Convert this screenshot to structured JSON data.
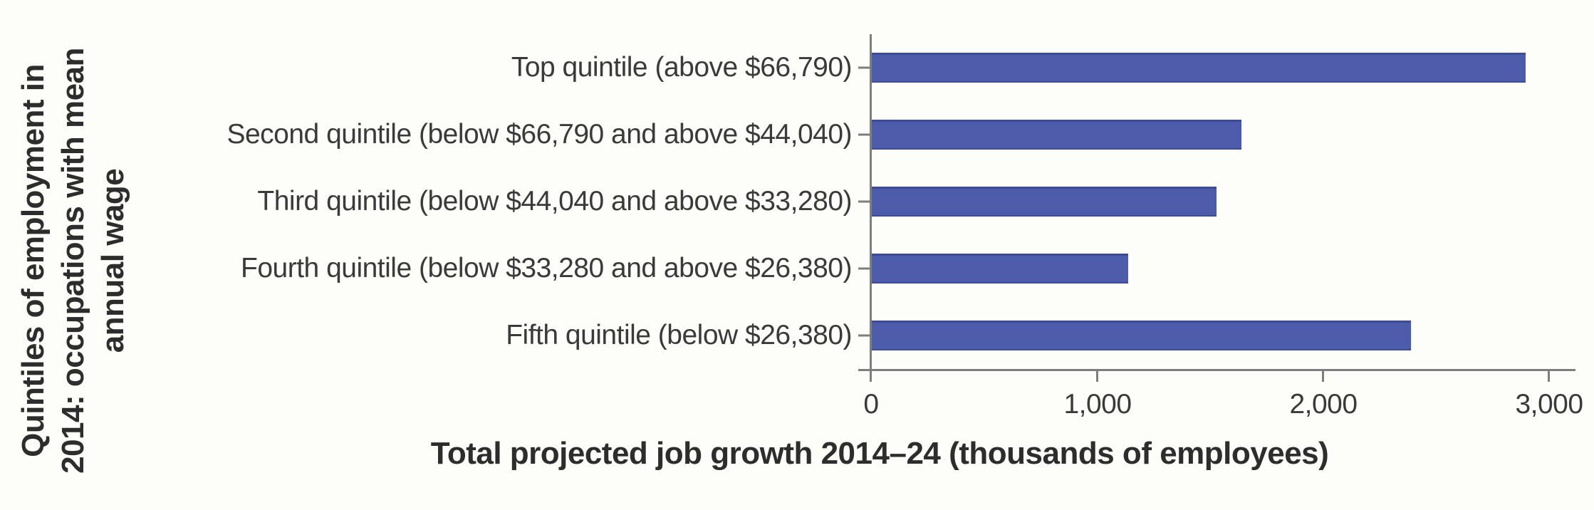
{
  "chart_data": {
    "type": "bar",
    "orientation": "horizontal",
    "categories": [
      "Top quintile (above $66,790)",
      "Second quintile (below $66,790 and above $44,040)",
      "Third quintile (below $44,040 and above $33,280)",
      "Fourth quintile (below $33,280 and above $26,380)",
      "Fifth quintile (below $26,380)"
    ],
    "values": [
      2900,
      1640,
      1530,
      1140,
      2390
    ],
    "xlabel": "Total projected job growth 2014–24 (thousands of employees)",
    "ylabel": "Quintiles of employment in 2014: occupations with mean annual wage",
    "ylabel_lines": [
      "Quintiles of employment in",
      "2014: occupations with mean",
      "annual wage"
    ],
    "xlim": [
      0,
      3100
    ],
    "xticks": [
      0,
      1000,
      2000,
      3000
    ],
    "xtick_labels": [
      "0",
      "1,000",
      "2,000",
      "3,000"
    ],
    "grid": false,
    "legend": null,
    "bar_color": "#4d5caa",
    "bar_edge_color": "#3d4c95",
    "axis_color": "#7e7e7e",
    "text_color": "#3a3a3a",
    "background": "#fdfdf9"
  }
}
